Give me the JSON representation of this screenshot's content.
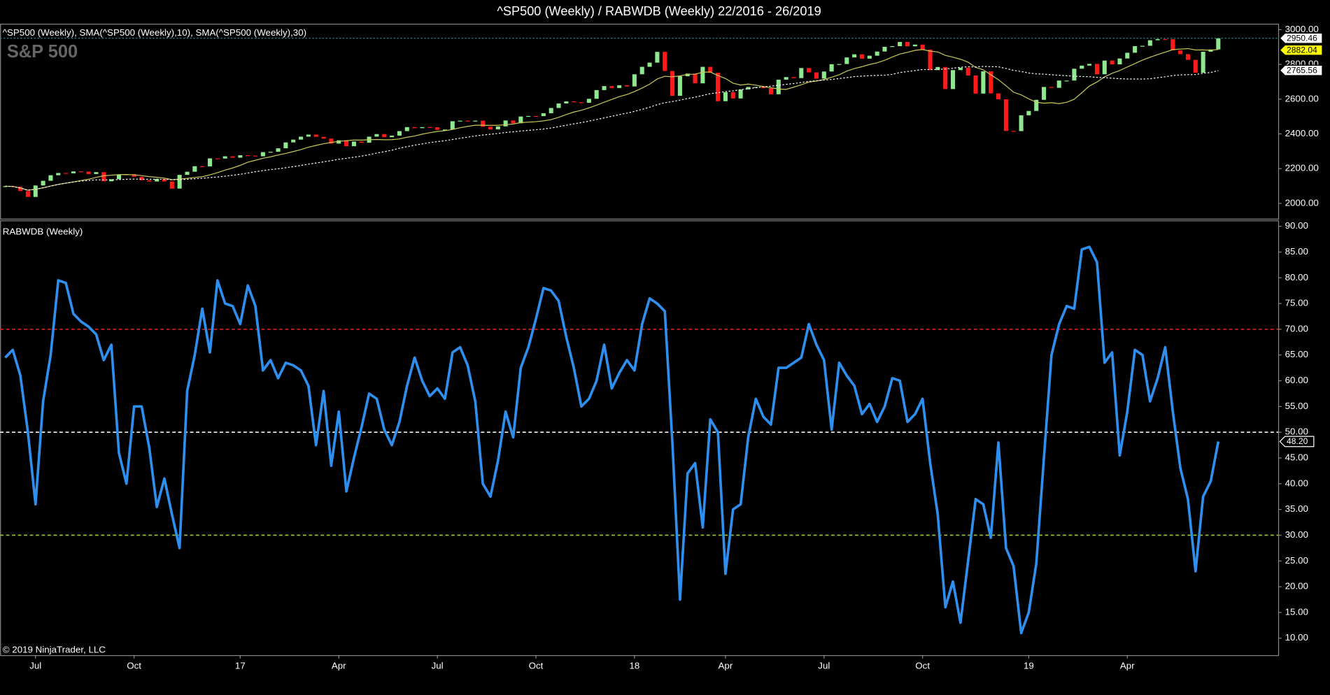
{
  "title": "^SP500 (Weekly) / RABWDB (Weekly)  22/2016 - 26/2019",
  "footer": "© 2019 NinjaTrader, LLC",
  "chart_data": [
    {
      "type": "candlestick",
      "legend": "^SP500 (Weekly),  SMA(^SP500 (Weekly),10),  SMA(^SP500 (Weekly),30)",
      "label": "S&P 500",
      "up_color": "#8ee88e",
      "down_color": "#ff1a1a",
      "sma": [
        {
          "period": 10,
          "color": "#c9c95a"
        },
        {
          "period": 30,
          "color": "#ffffff"
        }
      ],
      "close": [
        2099,
        2096,
        2071,
        2037,
        2103,
        2130,
        2162,
        2175,
        2173,
        2184,
        2183,
        2169,
        2180,
        2127,
        2139,
        2164,
        2168,
        2153,
        2133,
        2126,
        2141,
        2126,
        2085,
        2164,
        2182,
        2214,
        2213,
        2259,
        2258,
        2271,
        2263,
        2277,
        2275,
        2271,
        2295,
        2297,
        2317,
        2351,
        2367,
        2384,
        2396,
        2383,
        2373,
        2344,
        2363,
        2329,
        2356,
        2349,
        2384,
        2399,
        2381,
        2390,
        2416,
        2439,
        2433,
        2439,
        2438,
        2423,
        2425,
        2473,
        2476,
        2472,
        2476,
        2441,
        2426,
        2443,
        2477,
        2461,
        2500,
        2503,
        2502,
        2519,
        2549,
        2575,
        2587,
        2582,
        2579,
        2602,
        2652,
        2675,
        2664,
        2680,
        2673,
        2743,
        2786,
        2810,
        2872,
        2762,
        2619,
        2732,
        2747,
        2691,
        2786,
        2752,
        2588,
        2640,
        2604,
        2656,
        2670,
        2670,
        2663,
        2628,
        2712,
        2727,
        2721,
        2779,
        2754,
        2718,
        2759,
        2801,
        2802,
        2840,
        2858,
        2833,
        2850,
        2874,
        2901,
        2905,
        2929,
        2904,
        2914,
        2885,
        2767,
        2785,
        2658,
        2767,
        2781,
        2736,
        2632,
        2760,
        2633,
        2599,
        2417,
        2416,
        2507,
        2532,
        2596,
        2670,
        2665,
        2707,
        2707,
        2775,
        2793,
        2803,
        2743,
        2822,
        2800,
        2834,
        2867,
        2905,
        2907,
        2939,
        2946,
        2945,
        2881,
        2859,
        2826,
        2752,
        2873,
        2886,
        2950
      ],
      "ylim": [
        1912,
        3034
      ],
      "yticks": [
        {
          "value": 2000,
          "label": "2000.00"
        },
        {
          "value": 2200,
          "label": "2200.00"
        },
        {
          "value": 2400,
          "label": "2400.00"
        },
        {
          "value": 2600,
          "label": "2600.00"
        },
        {
          "value": 2800,
          "label": "2800.00"
        },
        {
          "value": 3000,
          "label": "3000.00"
        }
      ],
      "price_markers": [
        {
          "value": 2950.46,
          "label": "2950.46",
          "color": "#ffffff"
        },
        {
          "value": 2882.04,
          "label": "2882.04",
          "color": "#ffff00"
        },
        {
          "value": 2765.56,
          "label": "2765.56",
          "color": "#ffffff"
        }
      ]
    },
    {
      "type": "line",
      "label": "RABWDB (Weekly)",
      "categories": [
        null,
        null,
        null,
        null,
        "Jul",
        null,
        null,
        null,
        null,
        null,
        null,
        null,
        null,
        null,
        null,
        null,
        null,
        "Oct",
        null,
        null,
        null,
        null,
        null,
        null,
        null,
        null,
        null,
        null,
        null,
        null,
        null,
        "17",
        null,
        null,
        null,
        null,
        null,
        null,
        null,
        null,
        null,
        null,
        null,
        null,
        "Apr",
        null,
        null,
        null,
        null,
        null,
        null,
        null,
        null,
        null,
        null,
        null,
        null,
        "Jul",
        null,
        null,
        null,
        null,
        null,
        null,
        null,
        null,
        null,
        null,
        null,
        null,
        "Oct",
        null,
        null,
        null,
        null,
        null,
        null,
        null,
        null,
        null,
        null,
        null,
        null,
        "18",
        null,
        null,
        null,
        null,
        null,
        null,
        null,
        null,
        null,
        null,
        null,
        "Apr",
        null,
        null,
        null,
        null,
        null,
        null,
        null,
        null,
        null,
        null,
        null,
        null,
        "Jul",
        null,
        null,
        null,
        null,
        null,
        null,
        null,
        null,
        null,
        null,
        null,
        null,
        "Oct",
        null,
        null,
        null,
        null,
        null,
        null,
        null,
        null,
        null,
        null,
        null,
        null,
        null,
        "19",
        null,
        null,
        null,
        null,
        null,
        null,
        null,
        null,
        null,
        null,
        null,
        null,
        "Apr",
        null,
        null,
        null,
        null,
        null,
        null,
        null,
        null,
        null,
        null,
        null,
        null
      ],
      "series": [
        {
          "name": "RABWDB",
          "color": "#2f8fef",
          "values": [
            64.5,
            66,
            61,
            50,
            36,
            56,
            65,
            79.5,
            79,
            73,
            71.5,
            70.5,
            69,
            64,
            67,
            46,
            40,
            55,
            55,
            47,
            35.5,
            41,
            34,
            27.5,
            58,
            65,
            74,
            65.5,
            79.5,
            75,
            74.5,
            71,
            78.5,
            74.5,
            62,
            64,
            60.5,
            63.5,
            63,
            62,
            59,
            47.5,
            58,
            43.5,
            54,
            38.5,
            45,
            51,
            57.5,
            56.5,
            50.5,
            47.5,
            52,
            59,
            64.5,
            60,
            57,
            58.5,
            56.5,
            65.5,
            66.5,
            63,
            56,
            40,
            37.5,
            44.5,
            54,
            49,
            62.5,
            66.5,
            72,
            78,
            77.5,
            75.5,
            68.5,
            62.5,
            55,
            56.5,
            60,
            67,
            58.5,
            61.5,
            64,
            62,
            71,
            76,
            75,
            73.5,
            48,
            17.5,
            42,
            44,
            31.5,
            52.5,
            50,
            22.5,
            35,
            36,
            49,
            56.5,
            53,
            51.5,
            62.5,
            62.5,
            63.5,
            64.5,
            71,
            67,
            64,
            50.5,
            63.5,
            61,
            59,
            53.5,
            55.5,
            52,
            55,
            60.5,
            60,
            52,
            53.5,
            56.5,
            44,
            34,
            16,
            21,
            13,
            25,
            37,
            36,
            29.5,
            48,
            27.5,
            24,
            11,
            15,
            24.5,
            45,
            65,
            71,
            74.5,
            74,
            85.5,
            86,
            83,
            63.5,
            65.5,
            45.5,
            54,
            66,
            65,
            56,
            60.5,
            66.5,
            54,
            43,
            37,
            23,
            37.5,
            40.5,
            48.2
          ]
        }
      ],
      "last_value_label": "48.20",
      "hlines": [
        {
          "value": 70,
          "color": "#e02020"
        },
        {
          "value": 50,
          "color": "#ffffff"
        },
        {
          "value": 30,
          "color": "#9acd32"
        }
      ],
      "ylim": [
        6.7,
        91.15
      ],
      "yticks": [
        {
          "value": 10,
          "label": "10.00"
        },
        {
          "value": 15,
          "label": "15.00"
        },
        {
          "value": 20,
          "label": "20.00"
        },
        {
          "value": 25,
          "label": "25.00"
        },
        {
          "value": 30,
          "label": "30.00"
        },
        {
          "value": 35,
          "label": "35.00"
        },
        {
          "value": 40,
          "label": "40.00"
        },
        {
          "value": 45,
          "label": "45.00"
        },
        {
          "value": 50,
          "label": "50.00"
        },
        {
          "value": 55,
          "label": "55.00"
        },
        {
          "value": 60,
          "label": "60.00"
        },
        {
          "value": 65,
          "label": "65.00"
        },
        {
          "value": 70,
          "label": "70.00"
        },
        {
          "value": 75,
          "label": "75.00"
        },
        {
          "value": 80,
          "label": "80.00"
        },
        {
          "value": 85,
          "label": "85.00"
        },
        {
          "value": 90,
          "label": "90.00"
        }
      ]
    }
  ]
}
